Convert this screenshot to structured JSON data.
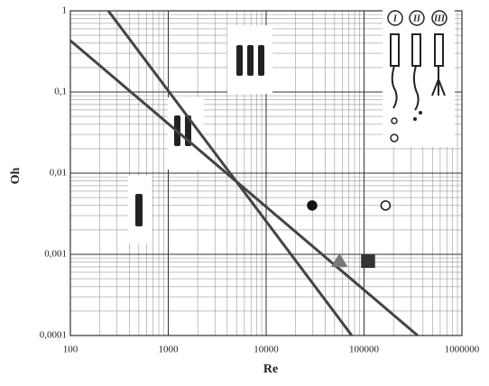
{
  "chart_data": {
    "type": "scatter",
    "xlabel": "Re",
    "ylabel": "Oh",
    "xscale": "log",
    "yscale": "log",
    "xlim": [
      100,
      1000000
    ],
    "ylim": [
      0.0001,
      1
    ],
    "xticks": [
      100,
      1000,
      10000,
      100000,
      1000000
    ],
    "yticks": [
      {
        "value": 0.0001,
        "label": "0,0001"
      },
      {
        "value": 0.001,
        "label": "0,001"
      },
      {
        "value": 0.01,
        "label": "0,01"
      },
      {
        "value": 0.1,
        "label": "0,1"
      },
      1
    ],
    "grid": true,
    "minor_grid": true,
    "regime_labels": [
      "I",
      "II",
      "III"
    ],
    "series": [
      {
        "mode": "line",
        "color": "#444444",
        "x": [
          244,
          75000
        ],
        "values": [
          1,
          0.0001
        ]
      },
      {
        "mode": "line",
        "color": "#444444",
        "x": [
          100,
          353000
        ],
        "values": [
          0.43,
          0.0001
        ]
      },
      {
        "mode": "marker",
        "marker": "circle",
        "filled": true,
        "color": "#111111",
        "x": [
          29500
        ],
        "values": [
          0.004
        ]
      },
      {
        "mode": "marker",
        "marker": "circle",
        "filled": false,
        "color": "#111111",
        "x": [
          166000
        ],
        "values": [
          0.004
        ]
      },
      {
        "mode": "marker",
        "marker": "triangle",
        "filled": true,
        "color": "#777777",
        "x": [
          56000
        ],
        "values": [
          0.00083
        ]
      },
      {
        "mode": "marker",
        "marker": "square",
        "filled": true,
        "color": "#333333",
        "x": [
          110000
        ],
        "values": [
          0.00083
        ]
      }
    ]
  }
}
